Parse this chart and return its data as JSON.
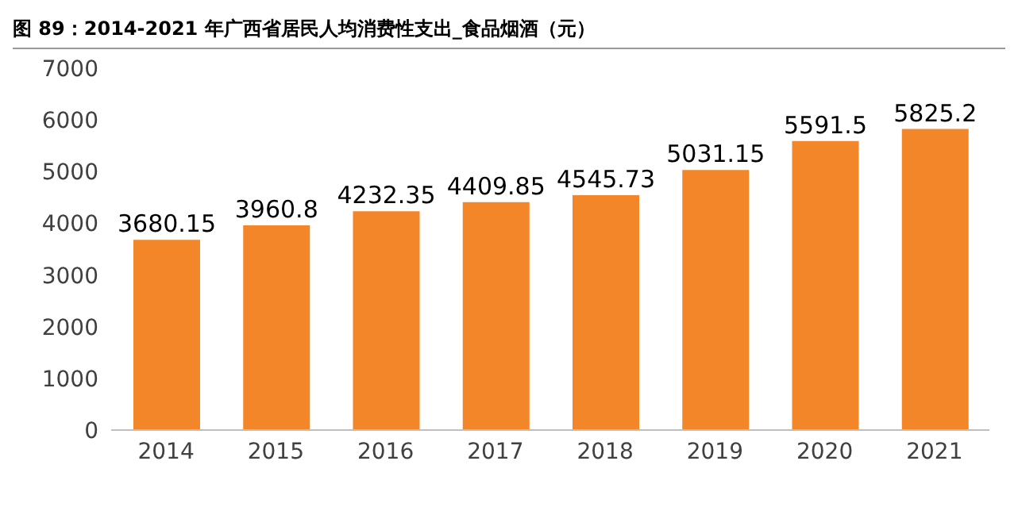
{
  "chart_data": {
    "type": "bar",
    "title": "图 89：2014-2021 年广西省居民人均消费性支出_食品烟酒（元）",
    "categories": [
      "2014",
      "2015",
      "2016",
      "2017",
      "2018",
      "2019",
      "2020",
      "2021"
    ],
    "values": [
      3680.15,
      3960.8,
      4232.35,
      4409.85,
      4545.73,
      5031.15,
      5591.5,
      5825.2
    ],
    "color": "#f4862a",
    "ylim": [
      0,
      7000
    ],
    "yticks": [
      0,
      1000,
      2000,
      3000,
      4000,
      5000,
      6000,
      7000
    ],
    "data_labels": true
  }
}
